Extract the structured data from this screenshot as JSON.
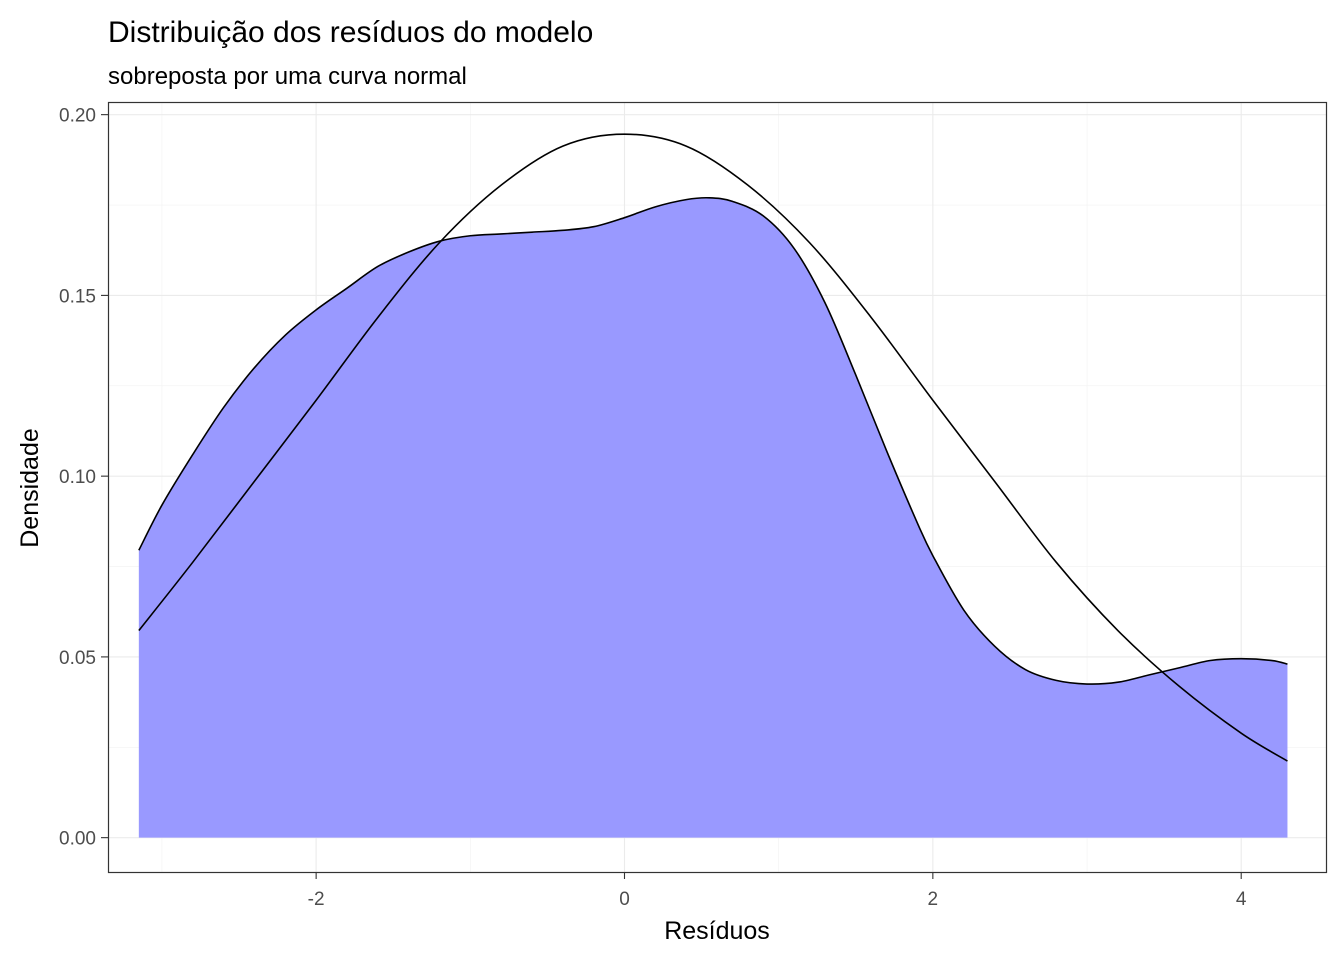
{
  "chart_data": {
    "type": "area",
    "title": "Distribuição dos resíduos do modelo",
    "subtitle": "sobreposta por uma curva normal",
    "xlabel": "Resíduos",
    "ylabel": "Densidade",
    "xlim": [
      -3.35,
      4.55
    ],
    "ylim": [
      -0.0095,
      0.2035
    ],
    "x_ticks": [
      -2,
      0,
      2,
      4
    ],
    "x_tick_labels": [
      "-2",
      "0",
      "2",
      "4"
    ],
    "y_ticks": [
      0.0,
      0.05,
      0.1,
      0.15,
      0.2
    ],
    "y_tick_labels": [
      "0.00",
      "0.05",
      "0.10",
      "0.15",
      "0.20"
    ],
    "grid": true,
    "legend": "none",
    "series": [
      {
        "kind": "density-area",
        "color": "#9999ff",
        "outline": "#000000",
        "x": [
          -3.15,
          -3.0,
          -2.8,
          -2.6,
          -2.4,
          -2.2,
          -2.0,
          -1.8,
          -1.6,
          -1.4,
          -1.2,
          -1.0,
          -0.8,
          -0.6,
          -0.4,
          -0.2,
          0.0,
          0.2,
          0.4,
          0.55,
          0.7,
          0.9,
          1.1,
          1.3,
          1.5,
          1.7,
          1.9,
          2.0,
          2.2,
          2.4,
          2.6,
          2.8,
          3.0,
          3.2,
          3.4,
          3.6,
          3.8,
          4.0,
          4.2,
          4.3
        ],
        "values": [
          0.0795,
          0.092,
          0.106,
          0.119,
          0.13,
          0.139,
          0.146,
          0.152,
          0.158,
          0.162,
          0.165,
          0.1665,
          0.167,
          0.1675,
          0.168,
          0.169,
          0.1715,
          0.1745,
          0.1765,
          0.177,
          0.176,
          0.172,
          0.163,
          0.148,
          0.128,
          0.107,
          0.087,
          0.078,
          0.063,
          0.053,
          0.0465,
          0.0435,
          0.0425,
          0.043,
          0.045,
          0.047,
          0.049,
          0.0495,
          0.049,
          0.048
        ]
      },
      {
        "kind": "normal-curve",
        "color": "#000000",
        "mean": 0.0,
        "sd": 2.05,
        "x": [
          -3.15,
          -2.8,
          -2.4,
          -2.0,
          -1.6,
          -1.2,
          -0.8,
          -0.4,
          0.0,
          0.4,
          0.8,
          1.2,
          1.6,
          2.0,
          2.4,
          2.8,
          3.2,
          3.6,
          4.0,
          4.3
        ],
        "values": [
          0.0573,
          0.0762,
          0.0986,
          0.121,
          0.1439,
          0.1646,
          0.1805,
          0.1913,
          0.1946,
          0.1913,
          0.1805,
          0.1646,
          0.1439,
          0.121,
          0.0986,
          0.0762,
          0.0573,
          0.0418,
          0.0289,
          0.0212
        ]
      }
    ]
  }
}
